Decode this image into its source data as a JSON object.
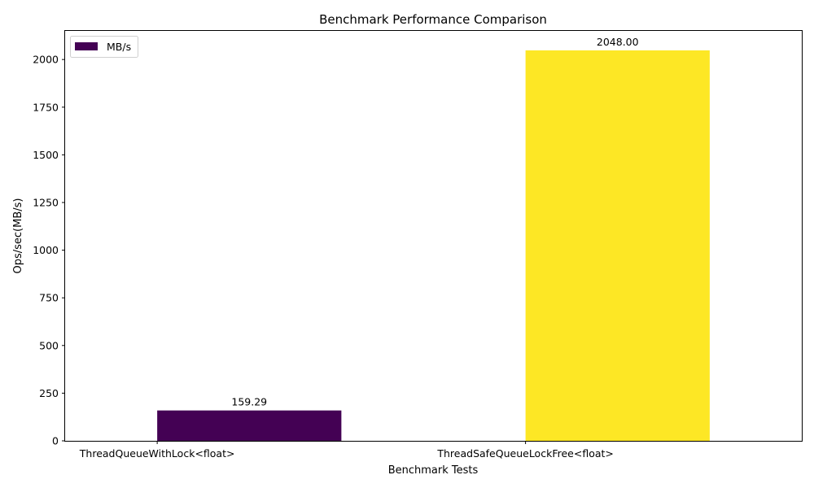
{
  "chart_data": {
    "type": "bar",
    "title": "Benchmark Performance Comparison",
    "xlabel": "Benchmark Tests",
    "ylabel": "Ops/sec(MB/s)",
    "categories": [
      "ThreadQueueWithLock<float>",
      "ThreadSafeQueueLockFree<float>"
    ],
    "series": [
      {
        "name": "MB/s",
        "values": [
          159.29,
          2048.0
        ],
        "value_labels": [
          "159.29",
          "2048.00"
        ],
        "colors": [
          "#440154",
          "#fde725"
        ]
      }
    ],
    "ylim": [
      0,
      2150
    ],
    "yticks": [
      0,
      250,
      500,
      750,
      1000,
      1250,
      1500,
      1750,
      2000
    ],
    "ytick_labels": [
      "0",
      "250",
      "500",
      "750",
      "1000",
      "1250",
      "1500",
      "1750",
      "2000"
    ],
    "grid": false,
    "legend": {
      "placement": "top-left"
    }
  }
}
